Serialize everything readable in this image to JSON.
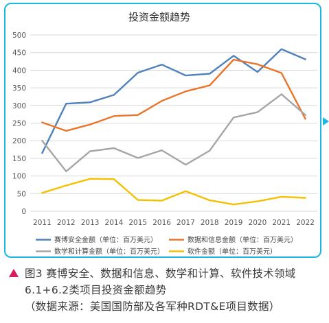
{
  "chart_data": {
    "type": "line",
    "title": "投资金额趋势",
    "categories": [
      "2011",
      "2012",
      "2013",
      "2014",
      "2015",
      "2016",
      "2017",
      "2018",
      "2019",
      "2020",
      "2021",
      "2022"
    ],
    "ylim": [
      0,
      500
    ],
    "yticks": [
      0,
      50,
      100,
      150,
      200,
      250,
      300,
      350,
      400,
      450,
      500
    ],
    "grid": "horizontal",
    "legend_position": "bottom",
    "series": [
      {
        "name": "赛博安全金额（单位：百万美元）",
        "color": "#4f81bd",
        "values": [
          165,
          305,
          309,
          330,
          393,
          416,
          385,
          390,
          441,
          395,
          460,
          431
        ]
      },
      {
        "name": "数据和信息金额（单位：百万美元）",
        "color": "#e8752a",
        "values": [
          252,
          228,
          246,
          270,
          273,
          313,
          340,
          357,
          430,
          417,
          392,
          262
        ]
      },
      {
        "name": "数学和计算金额（单位：百万美元）",
        "color": "#a5a5a5",
        "values": [
          200,
          113,
          170,
          179,
          151,
          173,
          132,
          172,
          266,
          281,
          332,
          273
        ]
      },
      {
        "name": "软件金额（单位：百万美元）",
        "color": "#f4c000",
        "values": [
          52,
          73,
          92,
          91,
          32,
          30,
          57,
          31,
          19,
          28,
          41,
          38
        ]
      }
    ]
  },
  "caption": {
    "line1": "图3 赛博安全、数据和信息、数学和计算、软件技术领域",
    "line2": "6.1+6.2类项目投资金额趋势",
    "line3": "（数据来源：美国国防部及各军种RDT&E项目数据）"
  }
}
